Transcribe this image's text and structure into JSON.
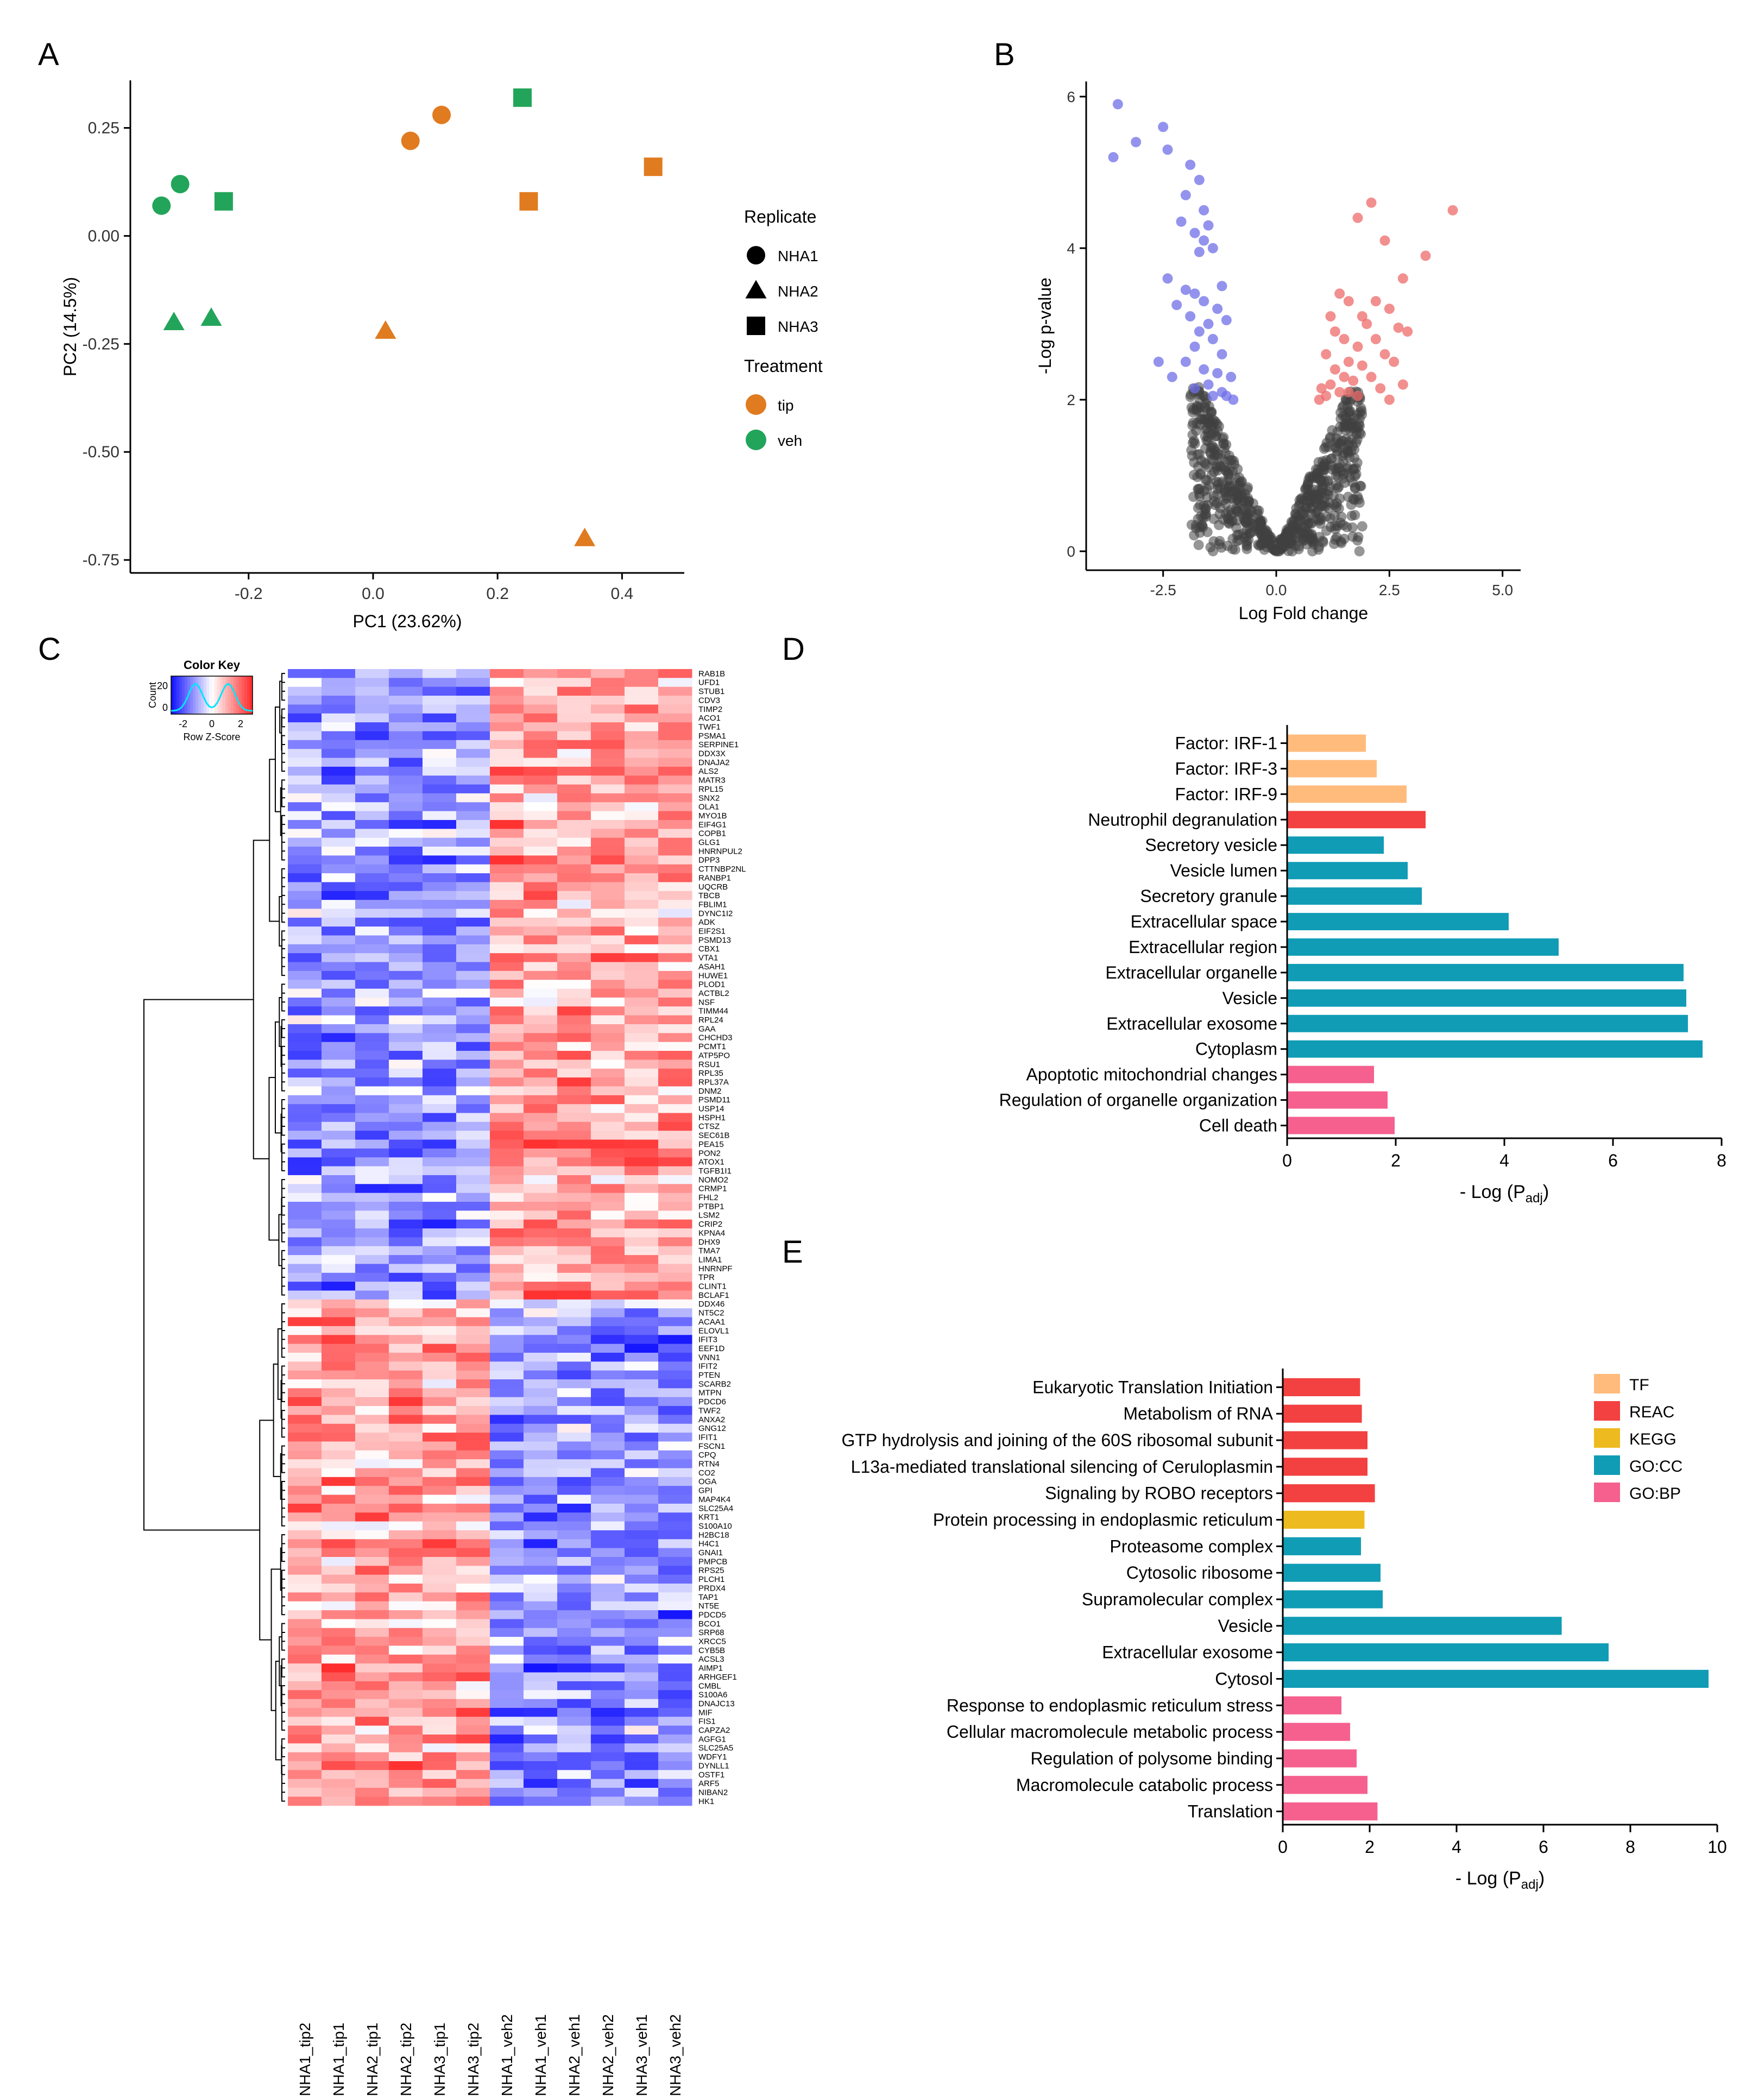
{
  "chart_data": [
    {
      "panel": "A",
      "type": "scatter",
      "xlabel": "PC1 (23.62%)",
      "ylabel": "PC2 (14.5%)",
      "xlim": [
        -0.39,
        0.5
      ],
      "ylim": [
        -0.78,
        0.36
      ],
      "xticks": [
        -0.2,
        0.0,
        0.2,
        0.4
      ],
      "xtick_labels": [
        "-0.2",
        "0.0",
        "0.2",
        "0.4"
      ],
      "yticks": [
        0.25,
        0.0,
        -0.25,
        -0.5,
        -0.75
      ],
      "ytick_labels": [
        "0.25",
        "0.00",
        "-0.25",
        "-0.50",
        "-0.75"
      ],
      "points": [
        {
          "x": -0.34,
          "y": 0.07,
          "replicate": "NHA1",
          "treatment": "veh"
        },
        {
          "x": -0.31,
          "y": 0.12,
          "replicate": "NHA1",
          "treatment": "veh"
        },
        {
          "x": -0.24,
          "y": 0.08,
          "replicate": "NHA3",
          "treatment": "veh"
        },
        {
          "x": -0.32,
          "y": -0.2,
          "replicate": "NHA2",
          "treatment": "veh"
        },
        {
          "x": -0.26,
          "y": -0.19,
          "replicate": "NHA2",
          "treatment": "veh"
        },
        {
          "x": 0.24,
          "y": 0.32,
          "replicate": "NHA3",
          "treatment": "veh"
        },
        {
          "x": 0.06,
          "y": 0.22,
          "replicate": "NHA1",
          "treatment": "tip"
        },
        {
          "x": 0.11,
          "y": 0.28,
          "replicate": "NHA1",
          "treatment": "tip"
        },
        {
          "x": 0.25,
          "y": 0.08,
          "replicate": "NHA3",
          "treatment": "tip"
        },
        {
          "x": 0.45,
          "y": 0.16,
          "replicate": "NHA3",
          "treatment": "tip"
        },
        {
          "x": 0.02,
          "y": -0.22,
          "replicate": "NHA2",
          "treatment": "tip"
        },
        {
          "x": 0.34,
          "y": -0.7,
          "replicate": "NHA2",
          "treatment": "tip"
        }
      ],
      "legend": {
        "replicate_title": "Replicate",
        "replicates": [
          {
            "label": "NHA1",
            "shape": "circle"
          },
          {
            "label": "NHA2",
            "shape": "triangle"
          },
          {
            "label": "NHA3",
            "shape": "square"
          }
        ],
        "treatment_title": "Treatment",
        "treatments": [
          {
            "label": "tip",
            "color": "#E07B20"
          },
          {
            "label": "veh",
            "color": "#22A55A"
          }
        ]
      }
    },
    {
      "panel": "B",
      "type": "scatter",
      "xlabel": "Log Fold change",
      "ylabel": "-Log p-value",
      "xlim": [
        -4.2,
        5.4
      ],
      "ylim": [
        -0.25,
        6.2
      ],
      "xticks": [
        -2.5,
        0,
        2.5,
        5
      ],
      "xtick_labels": [
        "-2.5",
        "0.0",
        "2.5",
        "5.0"
      ],
      "yticks": [
        0,
        2,
        4,
        6
      ],
      "ytick_labels": [
        "0",
        "2",
        "4",
        "6"
      ],
      "colors": {
        "down": "#6F6FE8",
        "up": "#EE6B6B",
        "ns": "#404040"
      },
      "up_points": [
        [
          2.1,
          4.6
        ],
        [
          1.8,
          4.4
        ],
        [
          3.9,
          4.5
        ],
        [
          2.4,
          4.1
        ],
        [
          3.3,
          3.9
        ],
        [
          2.8,
          3.6
        ],
        [
          1.4,
          3.4
        ],
        [
          1.6,
          3.3
        ],
        [
          2.2,
          3.3
        ],
        [
          1.9,
          3.1
        ],
        [
          2.5,
          3.2
        ],
        [
          1.2,
          3.1
        ],
        [
          2.0,
          3.0
        ],
        [
          2.7,
          2.95
        ],
        [
          2.9,
          2.9
        ],
        [
          1.3,
          2.9
        ],
        [
          1.5,
          2.8
        ],
        [
          2.2,
          2.8
        ],
        [
          1.8,
          2.7
        ],
        [
          2.4,
          2.6
        ],
        [
          1.1,
          2.6
        ],
        [
          1.6,
          2.5
        ],
        [
          2.6,
          2.5
        ],
        [
          1.9,
          2.45
        ],
        [
          1.3,
          2.4
        ],
        [
          2.1,
          2.3
        ],
        [
          2.8,
          2.2
        ],
        [
          1.5,
          2.3
        ],
        [
          1.7,
          2.25
        ],
        [
          1.2,
          2.2
        ],
        [
          1.0,
          2.15
        ],
        [
          2.3,
          2.15
        ],
        [
          1.4,
          2.1
        ],
        [
          1.8,
          2.05
        ],
        [
          2.5,
          2.0
        ],
        [
          1.1,
          2.05
        ],
        [
          0.95,
          2.0
        ],
        [
          1.6,
          2.1
        ]
      ],
      "down_points": [
        [
          -3.5,
          5.9
        ],
        [
          -2.5,
          5.6
        ],
        [
          -3.1,
          5.4
        ],
        [
          -3.6,
          5.2
        ],
        [
          -2.4,
          5.3
        ],
        [
          -1.9,
          5.1
        ],
        [
          -1.7,
          4.9
        ],
        [
          -2.0,
          4.7
        ],
        [
          -1.6,
          4.5
        ],
        [
          -2.1,
          4.35
        ],
        [
          -1.5,
          4.3
        ],
        [
          -1.8,
          4.2
        ],
        [
          -1.6,
          4.1
        ],
        [
          -1.4,
          4.0
        ],
        [
          -1.7,
          3.95
        ],
        [
          -2.4,
          3.6
        ],
        [
          -1.2,
          3.5
        ],
        [
          -2.0,
          3.45
        ],
        [
          -1.8,
          3.4
        ],
        [
          -1.6,
          3.3
        ],
        [
          -1.3,
          3.2
        ],
        [
          -2.2,
          3.25
        ],
        [
          -1.9,
          3.1
        ],
        [
          -1.5,
          3.0
        ],
        [
          -1.1,
          3.05
        ],
        [
          -1.7,
          2.9
        ],
        [
          -1.4,
          2.8
        ],
        [
          -1.8,
          2.7
        ],
        [
          -1.2,
          2.6
        ],
        [
          -2.6,
          2.5
        ],
        [
          -2.0,
          2.5
        ],
        [
          -1.6,
          2.4
        ],
        [
          -1.3,
          2.35
        ],
        [
          -2.3,
          2.3
        ],
        [
          -1.0,
          2.3
        ],
        [
          -1.5,
          2.2
        ],
        [
          -1.8,
          2.15
        ],
        [
          -1.2,
          2.1
        ],
        [
          -1.1,
          2.05
        ],
        [
          -1.4,
          2.05
        ],
        [
          -0.95,
          2.0
        ]
      ]
    },
    {
      "panel": "C",
      "type": "heatmap",
      "color_key_title": "Color Key",
      "color_key_xlabel": "Row Z-Score",
      "color_key_ylabel": "Count",
      "color_key_ticks": [
        "-2",
        "0",
        "2"
      ],
      "color_key_yticks": [
        "0",
        "20"
      ],
      "columns": [
        "NHA1_tip2",
        "NHA1_tip1",
        "NHA2_tip1",
        "NHA2_tip2",
        "NHA3_tip1",
        "NHA3_tip2",
        "NHA1_veh2",
        "NHA1_veh1",
        "NHA2_veh1",
        "NHA2_veh2",
        "NHA3_veh1",
        "NHA3_veh2"
      ],
      "row_labels": [
        "RAB1B",
        "UFD1",
        "STUB1",
        "CDV3",
        "TIMP2",
        "ACO1",
        "TWF1",
        "PSMA1",
        "SERPINE1",
        "DDX3X",
        "DNAJA2",
        "ALS2",
        "MATR3",
        "RPL15",
        "SNX2",
        "OLA1",
        "MYO1B",
        "EIF4G1",
        "COPB1",
        "GLG1",
        "HNRNPUL2",
        "DPP3",
        "CTTNBP2NL",
        "RANBP1",
        "UQCRB",
        "TBCB",
        "FBLIM1",
        "DYNC1I2",
        "ADK",
        "EIF2S1",
        "PSMD13",
        "CBX1",
        "VTA1",
        "ASAH1",
        "HUWE1",
        "PLOD1",
        "ACTBL2",
        "NSF",
        "TIMM44",
        "RPL24",
        "GAA",
        "CHCHD3",
        "PCMT1",
        "ATP5PO",
        "RSU1",
        "RPL35",
        "RPL37A",
        "DNM2",
        "PSMD11",
        "USP14",
        "HSPH1",
        "CTSZ",
        "SEC61B",
        "PEA15",
        "PON2",
        "ATOX1",
        "TGFB1I1",
        "NOMO2",
        "CRMP1",
        "FHL2",
        "PTBP1",
        "LSM2",
        "CRIP2",
        "KPNA4",
        "DHX9",
        "TMA7",
        "LIMA1",
        "HNRNPF",
        "TPR",
        "CLINT1",
        "BCLAF1",
        "DDX46",
        "NT5C2",
        "ACAA1",
        "ELOVL1",
        "IFIT3",
        "EEF1D",
        "VNN1",
        "IFIT2",
        "PTEN",
        "SCARB2",
        "MTPN",
        "PDCD6",
        "TWF2",
        "ANXA2",
        "GNG12",
        "IFIT1",
        "FSCN1",
        "CPQ",
        "RTN4",
        "CO2",
        "OGA",
        "GPI",
        "MAP4K4",
        "SLC25A4",
        "KRT1",
        "S100A10",
        "H2BC18",
        "H4C1",
        "GNAI1",
        "PMPCB",
        "RPS25",
        "PLCH1",
        "PRDX4",
        "TAP1",
        "NT5E",
        "PDCD5",
        "BCO1",
        "SRP68",
        "XRCC5",
        "CYB5B",
        "ACSL3",
        "AIMP1",
        "ARHGEF1",
        "CMBL",
        "S100A6",
        "DNAJC13",
        "MIF",
        "FIS1",
        "CAPZA2",
        "AGFG1",
        "SLC25A5",
        "WDFY1",
        "DYNLL1",
        "OSTF1",
        "ARF5",
        "NIBAN2",
        "HK1"
      ],
      "n_up_in_veh": 71,
      "n_up_in_tip": 57
    },
    {
      "panel": "D",
      "type": "bar",
      "orientation": "horizontal",
      "xlabel_prefix": "- Log (P",
      "xlabel_sub": "adj",
      "xlabel_suffix": ")",
      "xlim": [
        0,
        8
      ],
      "xticks": [
        0,
        2,
        4,
        6,
        8
      ],
      "categories": [
        "Factor: IRF-1",
        "Factor: IRF-3",
        "Factor: IRF-9",
        "Neutrophil degranulation",
        "Secretory vesicle",
        "Vesicle lumen",
        "Secretory granule",
        "Extracellular space",
        "Extracellular region",
        "Extracellular organelle",
        "Vesicle",
        "Extracellular exosome",
        "Cytoplasm",
        "Apoptotic mitochondrial changes",
        "Regulation of organelle organization",
        "Cell death"
      ],
      "values": [
        1.45,
        1.65,
        2.2,
        2.55,
        1.78,
        2.22,
        2.48,
        4.08,
        5.0,
        7.3,
        7.35,
        7.38,
        7.65,
        1.6,
        1.85,
        1.98
      ],
      "sources": [
        "TF",
        "TF",
        "TF",
        "REAC",
        "GO:CC",
        "GO:CC",
        "GO:CC",
        "GO:CC",
        "GO:CC",
        "GO:CC",
        "GO:CC",
        "GO:CC",
        "GO:CC",
        "GO:BP",
        "GO:BP",
        "GO:BP"
      ]
    },
    {
      "panel": "E",
      "type": "bar",
      "orientation": "horizontal",
      "xlabel_prefix": "- Log (P",
      "xlabel_sub": "adj",
      "xlabel_suffix": ")",
      "xlim": [
        0,
        10
      ],
      "xticks": [
        0,
        2,
        4,
        6,
        8,
        10
      ],
      "categories": [
        "Eukaryotic Translation Initiation",
        "Metabolism of RNA",
        "GTP hydrolysis and joining of the 60S ribosomal subunit",
        "L13a-mediated translational silencing of Ceruloplasmin",
        "Signaling by ROBO receptors",
        "Protein processing in endoplasmic reticulum",
        "Proteasome complex",
        "Cytosolic ribosome",
        "Supramolecular complex",
        "Vesicle",
        "Extracellular exosome",
        "Cytosol",
        "Response to endoplasmic reticulum stress",
        "Cellular macromolecule metabolic process",
        "Regulation of polysome binding",
        "Macromolecule catabolic process",
        "Translation"
      ],
      "values": [
        1.78,
        1.82,
        1.95,
        1.95,
        2.12,
        1.88,
        1.8,
        2.25,
        2.3,
        6.42,
        7.5,
        9.8,
        1.35,
        1.55,
        1.7,
        1.95,
        2.18
      ],
      "sources": [
        "REAC",
        "REAC",
        "REAC",
        "REAC",
        "REAC",
        "KEGG",
        "GO:CC",
        "GO:CC",
        "GO:CC",
        "GO:CC",
        "GO:CC",
        "GO:CC",
        "GO:BP",
        "GO:BP",
        "GO:BP",
        "GO:BP",
        "GO:BP"
      ],
      "legend": [
        {
          "label": "TF",
          "color": "#FFBB7C"
        },
        {
          "label": "REAC",
          "color": "#F24140"
        },
        {
          "label": "KEGG",
          "color": "#EDBB1F"
        },
        {
          "label": "GO:CC",
          "color": "#119CB5"
        },
        {
          "label": "GO:BP",
          "color": "#F5608F"
        }
      ]
    }
  ],
  "panel_labels": {
    "A": "A",
    "B": "B",
    "C": "C",
    "D": "D",
    "E": "E"
  },
  "source_colors": {
    "TF": "#FFBB7C",
    "REAC": "#F24140",
    "KEGG": "#EDBB1F",
    "GO:CC": "#119CB5",
    "GO:BP": "#F5608F"
  }
}
